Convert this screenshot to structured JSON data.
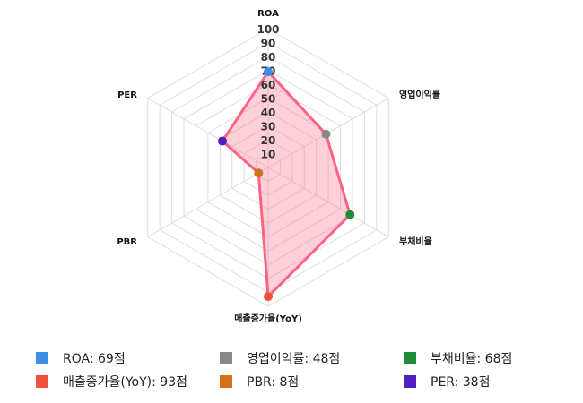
{
  "chart_data": {
    "type": "radar",
    "axes": [
      "ROA",
      "영업이익률",
      "부채비율",
      "매출증가율(YoY)",
      "PBR",
      "PER"
    ],
    "values": [
      69,
      48,
      68,
      93,
      8,
      38
    ],
    "point_colors": [
      "#3a8ee6",
      "#888888",
      "#1e8c3a",
      "#f0513a",
      "#d0731a",
      "#4f1fc0"
    ],
    "line_color": "#ff6384",
    "fill_color": "rgba(255,99,132,0.3)",
    "rlim": [
      0,
      100
    ],
    "ticks": [
      10,
      20,
      30,
      40,
      50,
      60,
      70,
      80,
      90,
      100
    ],
    "legend": [
      {
        "label": "ROA: 69점",
        "color": "#3a8ee6"
      },
      {
        "label": "영업이익률: 48점",
        "color": "#888888"
      },
      {
        "label": "부채비율: 68점",
        "color": "#1e8c3a"
      },
      {
        "label": "매출증가율(YoY): 93점",
        "color": "#f0513a"
      },
      {
        "label": "PBR: 8점",
        "color": "#d0731a"
      },
      {
        "label": "PER: 38점",
        "color": "#4f1fc0"
      }
    ],
    "legend_position": "bottom"
  }
}
